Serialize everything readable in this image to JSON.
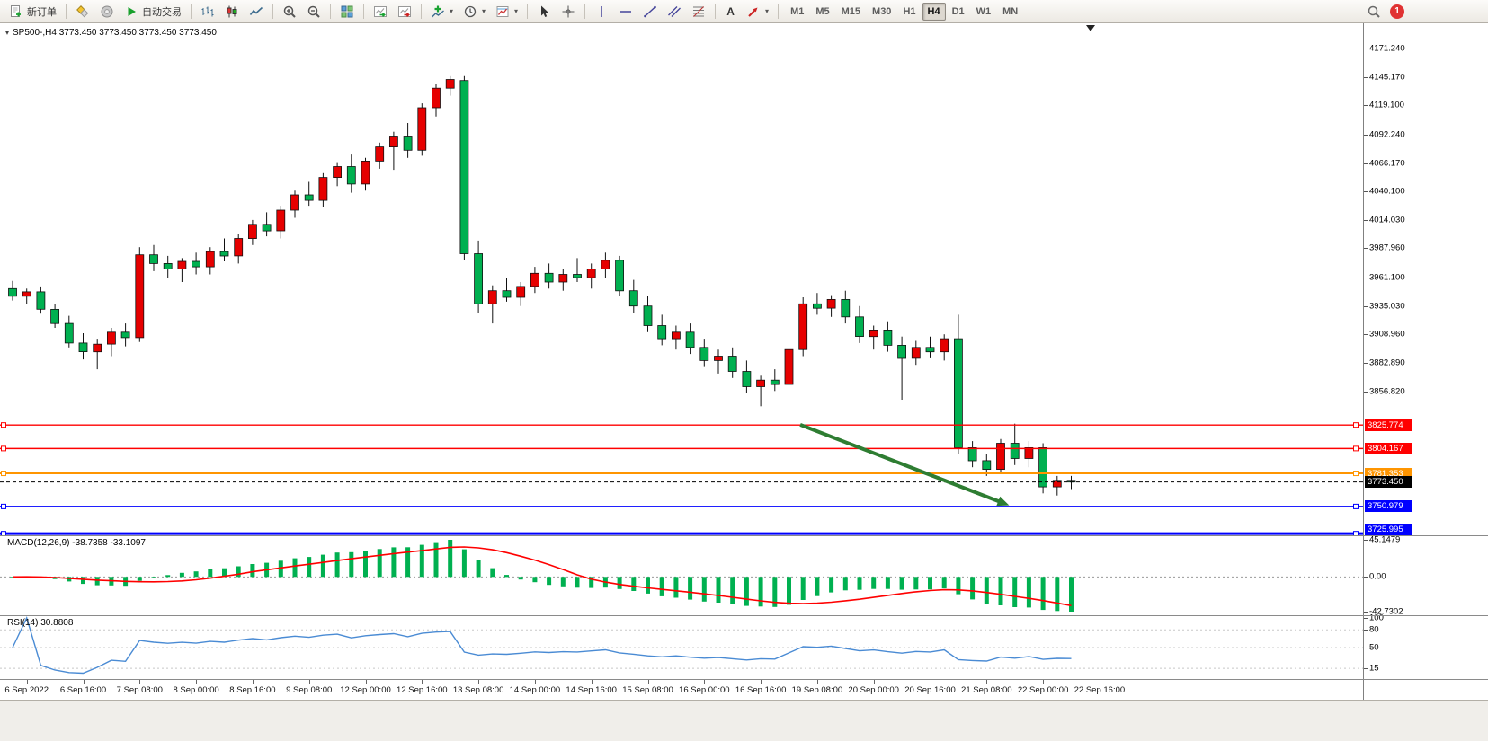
{
  "toolbar": {
    "new_order_label": "新订单",
    "auto_trading_label": "自动交易",
    "text_tool_label": "A",
    "timeframes": [
      "M1",
      "M5",
      "M15",
      "M30",
      "H1",
      "H4",
      "D1",
      "W1",
      "MN"
    ],
    "active_timeframe": "H4",
    "notification_count": "1",
    "icon_names": [
      "new-order-icon",
      "metaeditor-icon",
      "terminal-icon",
      "autotrading-play-icon",
      "bar-chart-icon",
      "candlestick-chart-icon",
      "line-chart-icon",
      "zoom-in-icon",
      "zoom-out-icon",
      "tile-windows-icon",
      "auto-scroll-icon",
      "chart-shift-icon",
      "indicators-add-icon",
      "periods-clock-icon",
      "templates-icon",
      "cursor-icon",
      "crosshair-icon",
      "vertical-line-icon",
      "horizontal-line-icon",
      "trendline-icon",
      "channel-icon",
      "fibonacci-icon",
      "text-icon",
      "arrows-icon",
      "search-icon",
      "notification-badge"
    ]
  },
  "chart_data": {
    "type": "candlestick",
    "symbol": "SP500-",
    "timeframe": "H4",
    "ohlc_label": "SP500-,H4  3773.450 3773.450 3773.450 3773.450",
    "up_color": "#e60000",
    "down_color": "#00b050",
    "price_axis": {
      "min": 3724.5,
      "max": 4194.5,
      "ticks": [
        "4171.240",
        "4145.170",
        "4119.100",
        "4092.240",
        "4066.170",
        "4040.100",
        "4014.030",
        "3987.960",
        "3961.100",
        "3935.030",
        "3908.960",
        "3882.890",
        "3856.820"
      ]
    },
    "level_lines": [
      {
        "price": 3825.774,
        "label": "3825.774",
        "color": "#ff0000",
        "width": 1.4,
        "style": "solid",
        "handles": true
      },
      {
        "price": 3804.167,
        "label": "3804.167",
        "color": "#ff0000",
        "width": 1.4,
        "style": "solid",
        "handles": true
      },
      {
        "price": 3781.353,
        "label": "3781.353",
        "color": "#ff9500",
        "width": 2,
        "style": "solid",
        "handles": true
      },
      {
        "price": 3773.45,
        "label": "3773.450",
        "color": "#000000",
        "width": 1,
        "style": "dashed",
        "handles": false
      },
      {
        "price": 3750.979,
        "label": "3750.979",
        "color": "#0000ff",
        "width": 1.4,
        "style": "solid",
        "handles": true
      },
      {
        "price": 3725.995,
        "label": "3725.995",
        "color": "#0000ff",
        "width": 3,
        "style": "solid",
        "handles": true
      }
    ],
    "candles": [
      [
        3951,
        3958,
        3940,
        3944
      ],
      [
        3944,
        3951,
        3937,
        3948
      ],
      [
        3948,
        3953,
        3928,
        3932
      ],
      [
        3932,
        3937,
        3915,
        3919
      ],
      [
        3919,
        3926,
        3897,
        3901
      ],
      [
        3901,
        3910,
        3886,
        3893
      ],
      [
        3893,
        3905,
        3877,
        3900
      ],
      [
        3900,
        3915,
        3889,
        3911
      ],
      [
        3911,
        3919,
        3898,
        3906
      ],
      [
        3906,
        3989,
        3902,
        3982
      ],
      [
        3982,
        3991,
        3967,
        3974
      ],
      [
        3974,
        3981,
        3961,
        3969
      ],
      [
        3969,
        3979,
        3957,
        3976
      ],
      [
        3976,
        3984,
        3964,
        3971
      ],
      [
        3971,
        3989,
        3964,
        3985
      ],
      [
        3985,
        3997,
        3976,
        3981
      ],
      [
        3981,
        4001,
        3974,
        3997
      ],
      [
        3997,
        4014,
        3991,
        4010
      ],
      [
        4010,
        4021,
        3999,
        4004
      ],
      [
        4004,
        4027,
        3997,
        4023
      ],
      [
        4023,
        4041,
        4016,
        4037
      ],
      [
        4037,
        4049,
        4027,
        4032
      ],
      [
        4032,
        4057,
        4026,
        4053
      ],
      [
        4053,
        4067,
        4045,
        4063
      ],
      [
        4063,
        4074,
        4039,
        4047
      ],
      [
        4047,
        4071,
        4041,
        4068
      ],
      [
        4068,
        4085,
        4061,
        4081
      ],
      [
        4081,
        4095,
        4060,
        4091
      ],
      [
        4091,
        4103,
        4071,
        4078
      ],
      [
        4078,
        4121,
        4073,
        4117
      ],
      [
        4117,
        4139,
        4109,
        4135
      ],
      [
        4135,
        4146,
        4128,
        4143
      ],
      [
        4142,
        4146,
        3977,
        3983
      ],
      [
        3983,
        3995,
        3929,
        3937
      ],
      [
        3937,
        3954,
        3919,
        3949
      ],
      [
        3949,
        3961,
        3939,
        3943
      ],
      [
        3943,
        3957,
        3935,
        3953
      ],
      [
        3953,
        3971,
        3947,
        3965
      ],
      [
        3965,
        3974,
        3951,
        3957
      ],
      [
        3957,
        3969,
        3949,
        3964
      ],
      [
        3964,
        3979,
        3957,
        3961
      ],
      [
        3961,
        3974,
        3951,
        3969
      ],
      [
        3969,
        3984,
        3961,
        3977
      ],
      [
        3977,
        3981,
        3944,
        3949
      ],
      [
        3949,
        3959,
        3929,
        3935
      ],
      [
        3935,
        3944,
        3911,
        3917
      ],
      [
        3917,
        3927,
        3899,
        3905
      ],
      [
        3905,
        3917,
        3895,
        3911
      ],
      [
        3911,
        3919,
        3891,
        3897
      ],
      [
        3897,
        3905,
        3879,
        3885
      ],
      [
        3885,
        3895,
        3873,
        3889
      ],
      [
        3889,
        3897,
        3869,
        3875
      ],
      [
        3875,
        3885,
        3855,
        3861
      ],
      [
        3861,
        3871,
        3843,
        3867
      ],
      [
        3867,
        3877,
        3857,
        3863
      ],
      [
        3863,
        3901,
        3859,
        3895
      ],
      [
        3895,
        3943,
        3889,
        3937
      ],
      [
        3937,
        3947,
        3927,
        3933
      ],
      [
        3933,
        3945,
        3925,
        3941
      ],
      [
        3941,
        3949,
        3919,
        3925
      ],
      [
        3925,
        3935,
        3901,
        3907
      ],
      [
        3907,
        3917,
        3895,
        3913
      ],
      [
        3913,
        3921,
        3893,
        3899
      ],
      [
        3899,
        3907,
        3849,
        3887
      ],
      [
        3887,
        3903,
        3881,
        3897
      ],
      [
        3897,
        3907,
        3887,
        3893
      ],
      [
        3893,
        3909,
        3885,
        3905
      ],
      [
        3905,
        3927,
        3799,
        3805
      ],
      [
        3805,
        3811,
        3787,
        3793
      ],
      [
        3793,
        3799,
        3779,
        3785
      ],
      [
        3785,
        3813,
        3781,
        3809
      ],
      [
        3809,
        3827,
        3789,
        3795
      ],
      [
        3795,
        3811,
        3787,
        3805
      ],
      [
        3805,
        3809,
        3763,
        3769
      ],
      [
        3769,
        3779,
        3761,
        3775
      ],
      [
        3775,
        3779,
        3767,
        3773.45
      ]
    ],
    "time_axis": {
      "labels": [
        "6 Sep 2022",
        "6 Sep 16:00",
        "7 Sep 08:00",
        "8 Sep 00:00",
        "8 Sep 16:00",
        "9 Sep 08:00",
        "12 Sep 00:00",
        "12 Sep 16:00",
        "13 Sep 08:00",
        "14 Sep 00:00",
        "14 Sep 16:00",
        "15 Sep 08:00",
        "16 Sep 00:00",
        "16 Sep 16:00",
        "19 Sep 08:00",
        "20 Sep 00:00",
        "20 Sep 16:00",
        "21 Sep 08:00",
        "22 Sep 00:00",
        "22 Sep 16:00"
      ],
      "first_label_bar": 1,
      "label_every": 4
    },
    "arrow": {
      "from_bar": 55.8,
      "from_price": 3826,
      "to_bar": 70.6,
      "to_price": 3752,
      "color": "#2e7d32",
      "width": 4
    },
    "macd": {
      "label": "MACD(12,26,9) -38.7358 -33.1097",
      "value_main": "-38.7358",
      "value_signal": "-33.1097",
      "axis_labels": [
        "45.1479",
        "0.00",
        "-42.7302"
      ],
      "histogram_color": "#00b050",
      "signal_color": "#ff0000"
    },
    "rsi": {
      "label": "RSI(14) 30.8808",
      "value": "30.8808",
      "axis_labels": [
        "100",
        "80",
        "50",
        "15"
      ],
      "axis_values": [
        100,
        80,
        50,
        15
      ],
      "levels": [
        80,
        50,
        15
      ],
      "line_color": "#4a8bd4"
    }
  }
}
